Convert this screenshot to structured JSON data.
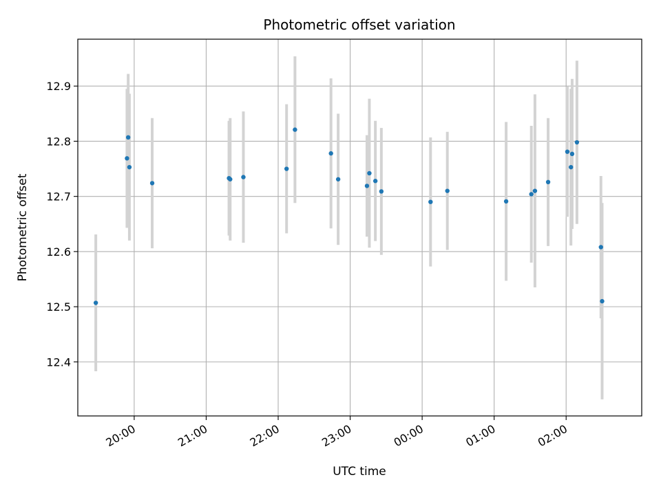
{
  "chart_data": {
    "type": "scatter",
    "title": "Photometric offset variation",
    "xlabel": "UTC time",
    "ylabel": "Photometric offset",
    "xlim": [
      "19:13",
      "03:03"
    ],
    "ylim": [
      12.302,
      12.985
    ],
    "grid": true,
    "x_ticks": [
      "20:00",
      "21:00",
      "22:00",
      "23:00",
      "00:00",
      "01:00",
      "02:00"
    ],
    "y_ticks": [
      "12.4",
      "12.5",
      "12.6",
      "12.7",
      "12.8",
      "12.9"
    ],
    "colors": {
      "points": "#1f77b4",
      "errorbars": "#d3d3d3",
      "grid": "#b0b0b0"
    },
    "series": [
      {
        "points": [
          {
            "x": "19:28",
            "y": 12.507,
            "yerr": 0.124
          },
          {
            "x": "19:54",
            "y": 12.769,
            "yerr": 0.126
          },
          {
            "x": "19:55",
            "y": 12.807,
            "yerr": 0.115
          },
          {
            "x": "19:56",
            "y": 12.753,
            "yerr": 0.133
          },
          {
            "x": "20:15",
            "y": 12.724,
            "yerr": 0.118
          },
          {
            "x": "21:19",
            "y": 12.733,
            "yerr": 0.104
          },
          {
            "x": "21:20",
            "y": 12.731,
            "yerr": 0.111
          },
          {
            "x": "21:31",
            "y": 12.735,
            "yerr": 0.119
          },
          {
            "x": "22:07",
            "y": 12.75,
            "yerr": 0.117
          },
          {
            "x": "22:14",
            "y": 12.821,
            "yerr": 0.133
          },
          {
            "x": "22:44",
            "y": 12.778,
            "yerr": 0.136
          },
          {
            "x": "22:50",
            "y": 12.731,
            "yerr": 0.119
          },
          {
            "x": "23:14",
            "y": 12.719,
            "yerr": 0.092
          },
          {
            "x": "23:16",
            "y": 12.742,
            "yerr": 0.135
          },
          {
            "x": "23:21",
            "y": 12.728,
            "yerr": 0.109
          },
          {
            "x": "23:26",
            "y": 12.709,
            "yerr": 0.115
          },
          {
            "x": "00:07",
            "y": 12.69,
            "yerr": 0.117
          },
          {
            "x": "00:21",
            "y": 12.71,
            "yerr": 0.107
          },
          {
            "x": "01:10",
            "y": 12.691,
            "yerr": 0.144
          },
          {
            "x": "01:31",
            "y": 12.704,
            "yerr": 0.124
          },
          {
            "x": "01:34",
            "y": 12.71,
            "yerr": 0.175
          },
          {
            "x": "01:45",
            "y": 12.726,
            "yerr": 0.116
          },
          {
            "x": "02:01",
            "y": 12.781,
            "yerr": 0.118
          },
          {
            "x": "02:04",
            "y": 12.753,
            "yerr": 0.142
          },
          {
            "x": "02:05",
            "y": 12.777,
            "yerr": 0.136
          },
          {
            "x": "02:09",
            "y": 12.798,
            "yerr": 0.148
          },
          {
            "x": "02:29",
            "y": 12.608,
            "yerr": 0.129
          },
          {
            "x": "02:30",
            "y": 12.51,
            "yerr": 0.178
          }
        ]
      }
    ]
  }
}
